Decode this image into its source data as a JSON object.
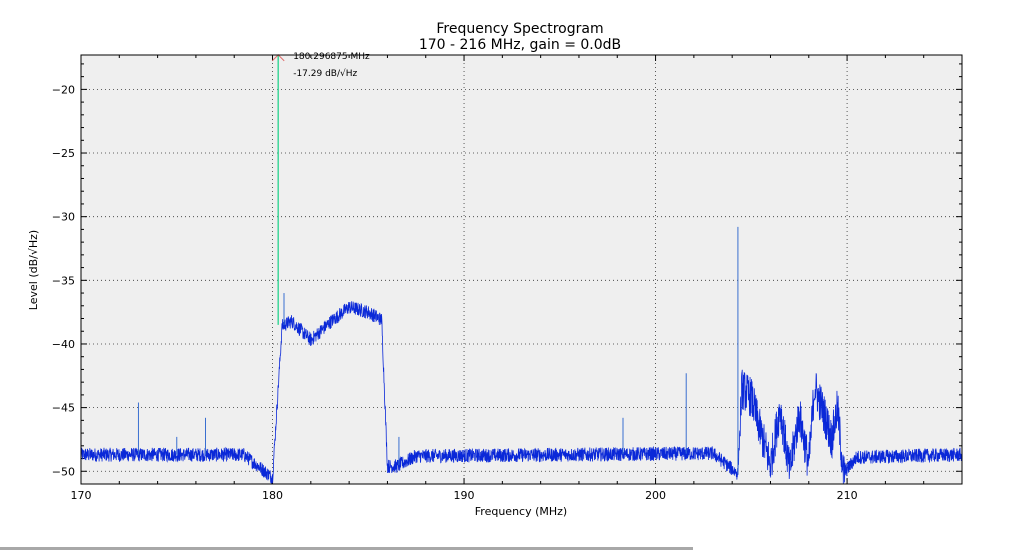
{
  "chart_data": {
    "type": "line",
    "title": "Frequency Spectrogram",
    "subtitle": "170 - 216 MHz, gain = 0.0dB",
    "xlabel": "Frequency (MHz)",
    "ylabel": "Level (dB/√Hz)",
    "xlim": [
      170,
      216
    ],
    "ylim": [
      -51,
      -17.3
    ],
    "xticks": [
      170,
      180,
      190,
      200,
      210
    ],
    "yticks": [
      -20,
      -25,
      -30,
      -35,
      -40,
      -45,
      -50
    ],
    "xtick_labels": [
      "170",
      "180",
      "190",
      "200",
      "210"
    ],
    "ytick_labels": [
      "−20",
      "−25",
      "−30",
      "−35",
      "−40",
      "−45",
      "−50"
    ],
    "grid": true,
    "series": [
      {
        "name": "spectrum",
        "color": "#0a28d8",
        "envelope": [
          [
            170,
            -48.7
          ],
          [
            178.5,
            -48.7
          ],
          [
            180,
            -50.5
          ],
          [
            180.5,
            -38.6
          ],
          [
            181,
            -38.2
          ],
          [
            182,
            -39.7
          ],
          [
            183,
            -38.3
          ],
          [
            184,
            -37.1
          ],
          [
            185,
            -37.5
          ],
          [
            185.7,
            -38.1
          ],
          [
            186,
            -49.6
          ],
          [
            186.5,
            -49.6
          ],
          [
            187.5,
            -48.8
          ],
          [
            203,
            -48.6
          ],
          [
            204.3,
            -50.2
          ],
          [
            204.5,
            -43.5
          ],
          [
            205,
            -44.2
          ],
          [
            205.5,
            -47
          ],
          [
            206,
            -49.5
          ],
          [
            206.5,
            -45
          ],
          [
            207,
            -50
          ],
          [
            207.5,
            -45.5
          ],
          [
            208,
            -49.5
          ],
          [
            208.3,
            -43.3
          ],
          [
            208.8,
            -45.5
          ],
          [
            209.2,
            -47.5
          ],
          [
            209.5,
            -45
          ],
          [
            209.8,
            -50.2
          ],
          [
            210.5,
            -48.9
          ],
          [
            216,
            -48.7
          ]
        ],
        "spikes": [
          [
            173,
            -44.6
          ],
          [
            175,
            -47.3
          ],
          [
            176.5,
            -45.8
          ],
          [
            180.6,
            -36
          ],
          [
            186.6,
            -47.3
          ],
          [
            198.3,
            -45.8
          ],
          [
            201.6,
            -42.3
          ],
          [
            204.3,
            -30.8
          ]
        ]
      }
    ],
    "peak_marker": {
      "frequency_mhz": 180.296875,
      "level": -17.29,
      "freq_label": "180.296875 MHz",
      "level_label": "-17.29 dB/√Hz",
      "line_color": "#3fd69a",
      "marker_color": "#e07070"
    },
    "background": "#efefef"
  }
}
